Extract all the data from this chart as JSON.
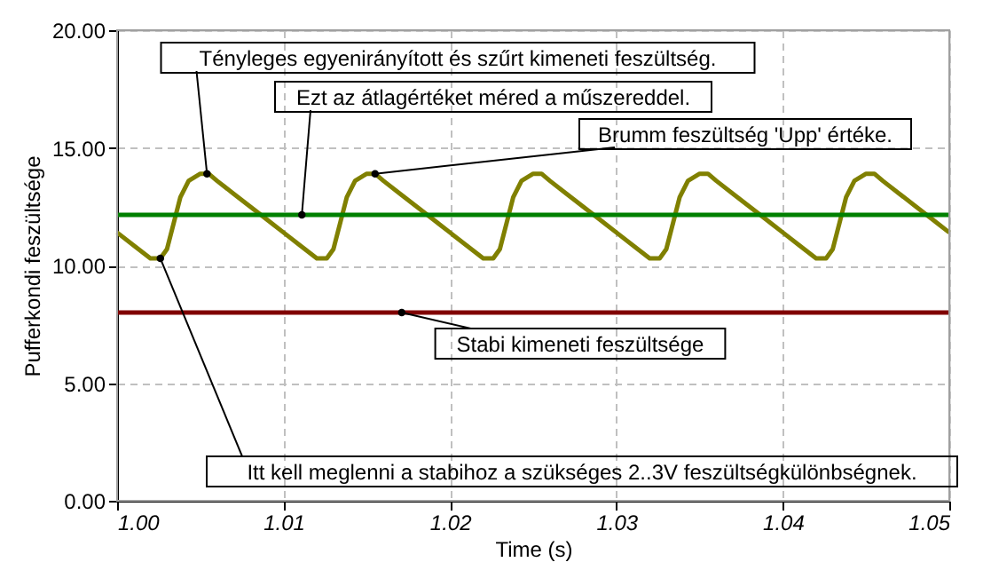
{
  "chart_data": {
    "type": "line",
    "xlabel": "Time (s)",
    "ylabel": "Pufferkondi feszültsége",
    "xlim": [
      1.0,
      1.05
    ],
    "ylim": [
      0,
      20
    ],
    "xticks": [
      {
        "value": 1.0,
        "label": "1.00"
      },
      {
        "value": 1.01,
        "label": "1.01"
      },
      {
        "value": 1.02,
        "label": "1.02"
      },
      {
        "value": 1.03,
        "label": "1.03"
      },
      {
        "value": 1.04,
        "label": "1.04"
      },
      {
        "value": 1.05,
        "label": "1.05"
      }
    ],
    "yticks": [
      {
        "value": 0,
        "label": "0.00"
      },
      {
        "value": 5,
        "label": "5.00"
      },
      {
        "value": 10,
        "label": "10.00"
      },
      {
        "value": 15,
        "label": "15.00"
      },
      {
        "value": 20,
        "label": "20.00"
      }
    ],
    "grid": true,
    "line_style": "solid",
    "marker": "none",
    "series": [
      {
        "color": "#808000",
        "x": [
          1.0,
          1.001,
          1.002,
          1.0026,
          1.003,
          1.0034,
          1.0038,
          1.0043,
          1.005,
          1.0055,
          1.006,
          1.007,
          1.008,
          1.009,
          1.01,
          1.011,
          1.012,
          1.0126,
          1.013,
          1.0134,
          1.0138,
          1.0143,
          1.015,
          1.0155,
          1.016,
          1.017,
          1.018,
          1.019,
          1.02,
          1.021,
          1.022,
          1.0226,
          1.023,
          1.0234,
          1.0238,
          1.0243,
          1.025,
          1.0255,
          1.026,
          1.027,
          1.028,
          1.029,
          1.03,
          1.031,
          1.032,
          1.0326,
          1.033,
          1.0334,
          1.0338,
          1.0343,
          1.035,
          1.0355,
          1.036,
          1.037,
          1.038,
          1.039,
          1.04,
          1.041,
          1.042,
          1.0426,
          1.043,
          1.0434,
          1.0438,
          1.0443,
          1.045,
          1.0455,
          1.046,
          1.047,
          1.048,
          1.049,
          1.05
        ],
        "values": [
          11.4,
          10.85,
          10.3,
          10.3,
          10.7,
          11.8,
          12.9,
          13.6,
          13.9,
          13.9,
          13.6,
          13.05,
          12.5,
          11.95,
          11.4,
          10.85,
          10.3,
          10.3,
          10.7,
          11.8,
          12.9,
          13.6,
          13.9,
          13.9,
          13.6,
          13.05,
          12.5,
          11.95,
          11.4,
          10.85,
          10.3,
          10.3,
          10.7,
          11.8,
          12.9,
          13.6,
          13.9,
          13.9,
          13.6,
          13.05,
          12.5,
          11.95,
          11.4,
          10.85,
          10.3,
          10.3,
          10.7,
          11.8,
          12.9,
          13.6,
          13.9,
          13.9,
          13.6,
          13.05,
          12.5,
          11.95,
          11.4,
          10.85,
          10.3,
          10.3,
          10.7,
          11.8,
          12.9,
          13.6,
          13.9,
          13.9,
          13.6,
          13.05,
          12.5,
          11.95,
          11.4
        ]
      },
      {
        "color": "#008000",
        "x": [
          1.0,
          1.05
        ],
        "values": [
          12.15,
          12.15
        ]
      },
      {
        "color": "#800000",
        "x": [
          1.0,
          1.05
        ],
        "values": [
          8.0,
          8.0
        ]
      }
    ],
    "annotations": [
      {
        "text": "Tényleges egyenirányított és szűrt kimeneti feszültség.",
        "x": 1.0054,
        "y": 13.9
      },
      {
        "text": "Ezt az átlagértéket méred a műszereddel.",
        "x": 1.0111,
        "y": 12.15
      },
      {
        "text": "Brumm feszültség 'Upp' értéke.",
        "x": 1.0155,
        "y": 13.9
      },
      {
        "text": "Stabi kimeneti feszültsége",
        "x": 1.0171,
        "y": 8.0
      },
      {
        "text": "Itt kell meglenni a stabihoz a szükséges 2..3V feszültségkülönbségnek.",
        "x": 1.0026,
        "y": 10.3
      }
    ]
  }
}
